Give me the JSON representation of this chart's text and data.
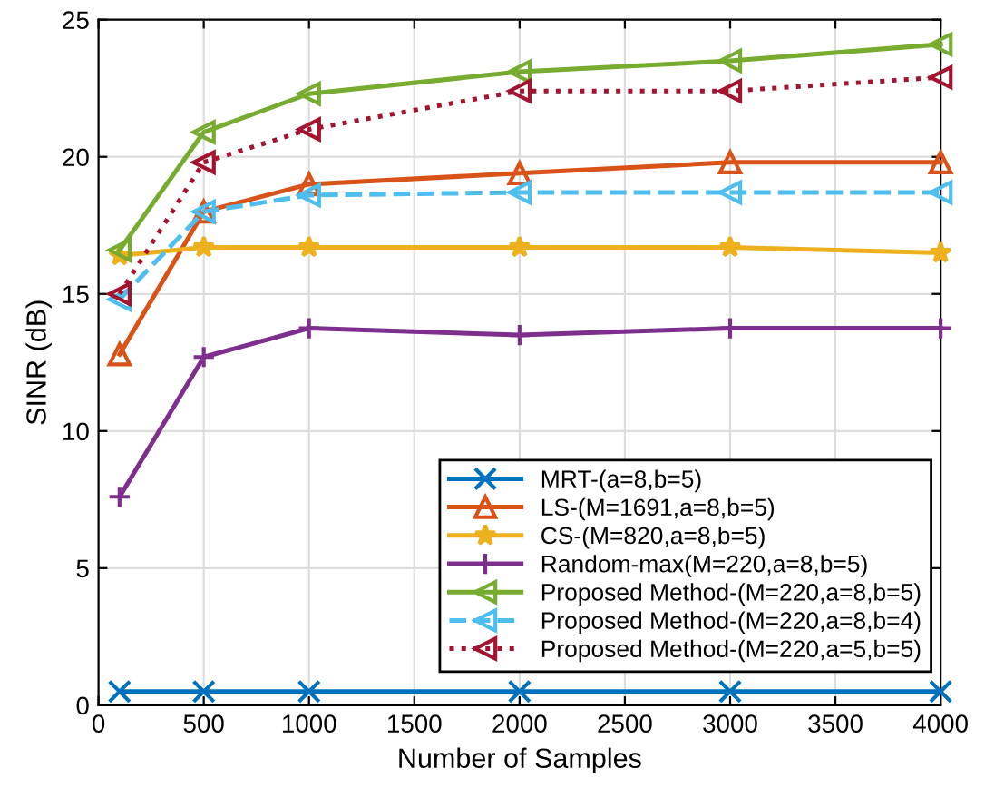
{
  "chart_data": {
    "type": "line",
    "xlabel": "Number of Samples",
    "ylabel": "SINR (dB)",
    "x": [
      100,
      500,
      1000,
      2000,
      3000,
      4000
    ],
    "xlim": [
      0,
      4000
    ],
    "xticks": [
      0,
      500,
      1000,
      1500,
      2000,
      2500,
      3000,
      3500,
      4000
    ],
    "ylim": [
      0,
      25
    ],
    "yticks": [
      0,
      5,
      10,
      15,
      20,
      25
    ],
    "grid": true,
    "legend": "bottom right",
    "series": [
      {
        "name": "MRT-(a=8,b=5)",
        "color": "#0072bd",
        "marker": "cross",
        "line_style": "solid",
        "values": [
          0.5,
          0.5,
          0.5,
          0.5,
          0.5,
          0.5
        ]
      },
      {
        "name": "LS-(M=1691,a=8,b=5)",
        "color": "#d95319",
        "marker": "triangle",
        "line_style": "solid",
        "values": [
          12.8,
          18.0,
          19.0,
          19.4,
          19.8,
          19.8
        ]
      },
      {
        "name": "CS-(M=820,a=8,b=5)",
        "color": "#edb120",
        "marker": "star",
        "line_style": "solid",
        "values": [
          16.4,
          16.7,
          16.7,
          16.7,
          16.7,
          16.5
        ]
      },
      {
        "name": "Random-max(M=220,a=8,b=5)",
        "color": "#7e2f8e",
        "marker": "plus",
        "line_style": "solid",
        "values": [
          7.6,
          12.7,
          13.75,
          13.5,
          13.75,
          13.75
        ]
      },
      {
        "name": "Proposed Method-(M=220,a=8,b=5)",
        "color": "#77ac30",
        "marker": "triangle_left",
        "line_style": "solid",
        "values": [
          16.6,
          20.9,
          22.3,
          23.1,
          23.5,
          24.1
        ]
      },
      {
        "name": "Proposed Method-(M=220,a=8,b=4)",
        "color": "#4dbeee",
        "marker": "triangle_left",
        "line_style": "dashed",
        "values": [
          14.8,
          18.0,
          18.6,
          18.7,
          18.7,
          18.7
        ]
      },
      {
        "name": "Proposed Method-(M=220,a=5,b=5)",
        "color": "#a2142f",
        "marker": "triangle_left",
        "line_style": "dotted",
        "values": [
          15.0,
          19.8,
          21.0,
          22.4,
          22.4,
          22.9
        ]
      }
    ]
  }
}
